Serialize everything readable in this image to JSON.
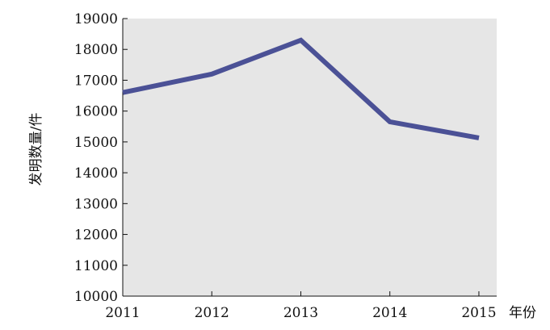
{
  "chart_data": {
    "type": "line",
    "x": [
      "2011",
      "2012",
      "2013",
      "2014",
      "2015"
    ],
    "series": [
      {
        "values": [
          16600,
          17200,
          18300,
          15650,
          15130
        ],
        "color": "#4b5196"
      }
    ],
    "xlabel": "年份",
    "ylabel": "发明数量/件",
    "ylim": [
      10000,
      19000
    ],
    "yticks": [
      "10000",
      "11000",
      "12000",
      "13000",
      "14000",
      "15000",
      "16000",
      "17000",
      "18000",
      "19000"
    ],
    "plot_background": "#e6e6e6",
    "grid": false
  }
}
